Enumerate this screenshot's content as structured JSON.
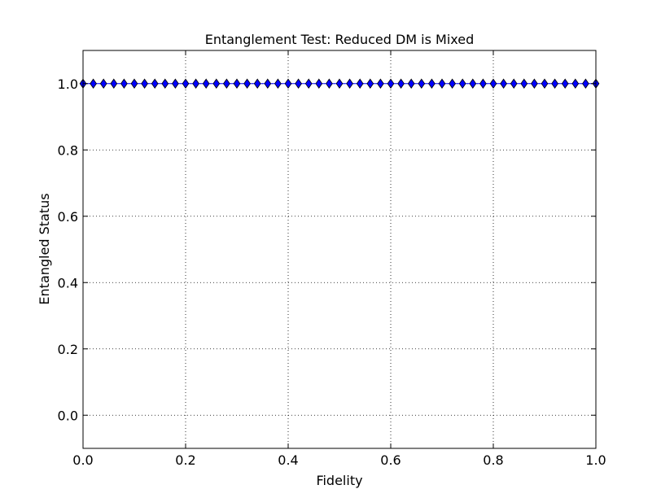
{
  "chart_data": {
    "type": "line",
    "title": "Entanglement Test: Reduced DM is Mixed",
    "xlabel": "Fidelity",
    "ylabel": "Entangled Status",
    "xlim": [
      0.0,
      1.0
    ],
    "ylim": [
      -0.1,
      1.1
    ],
    "xticks": [
      "0.0",
      "0.2",
      "0.4",
      "0.6",
      "0.8",
      "1.0"
    ],
    "yticks": [
      "0.0",
      "0.2",
      "0.4",
      "0.6",
      "0.8",
      "1.0"
    ],
    "grid": true,
    "marker": "diamond",
    "line_color": "#0000ff",
    "marker_color": "#0000ff",
    "series": [
      {
        "x": [
          0.0,
          0.02,
          0.04,
          0.06,
          0.08,
          0.1,
          0.12,
          0.14,
          0.16,
          0.18,
          0.2,
          0.22,
          0.24,
          0.26,
          0.28,
          0.3,
          0.32,
          0.34,
          0.36,
          0.38,
          0.4,
          0.42,
          0.44,
          0.46,
          0.48,
          0.5,
          0.52,
          0.54,
          0.56,
          0.58,
          0.6,
          0.62,
          0.64,
          0.66,
          0.68,
          0.7,
          0.72,
          0.74,
          0.76,
          0.78,
          0.8,
          0.82,
          0.84,
          0.86,
          0.88,
          0.9,
          0.92,
          0.94,
          0.96,
          0.98,
          1.0
        ],
        "y": [
          1,
          1,
          1,
          1,
          1,
          1,
          1,
          1,
          1,
          1,
          1,
          1,
          1,
          1,
          1,
          1,
          1,
          1,
          1,
          1,
          1,
          1,
          1,
          1,
          1,
          1,
          1,
          1,
          1,
          1,
          1,
          1,
          1,
          1,
          1,
          1,
          1,
          1,
          1,
          1,
          1,
          1,
          1,
          1,
          1,
          1,
          1,
          1,
          1,
          1,
          1
        ]
      }
    ]
  }
}
